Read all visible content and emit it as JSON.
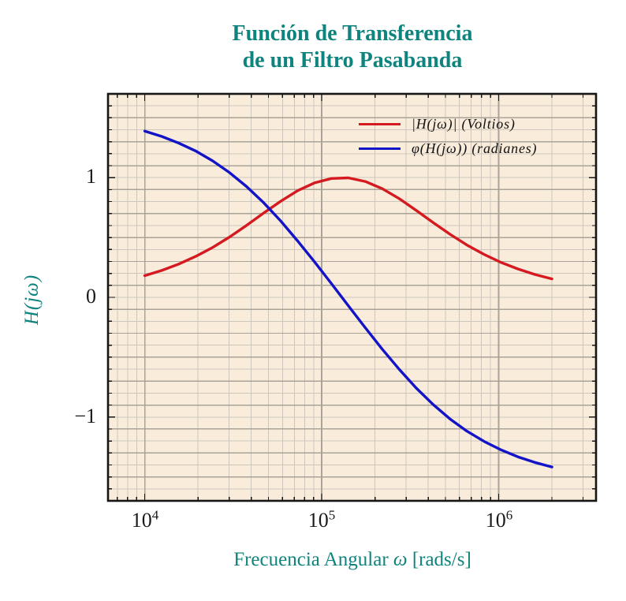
{
  "title": {
    "line1": "Función de Transferencia",
    "line2": "de un Filtro Pasabanda"
  },
  "axes": {
    "ylabel": "H(jω)",
    "xlabel_text": "Frecuencia Angular",
    "xlabel_symbol": "ω",
    "xlabel_units": "[rads/s]",
    "x_tick_labels": [
      {
        "base": "10",
        "exp": "4"
      },
      {
        "base": "10",
        "exp": "5"
      },
      {
        "base": "10",
        "exp": "6"
      }
    ],
    "y_tick_labels": [
      "1",
      "0",
      "−1"
    ]
  },
  "legend": {
    "items": [
      {
        "label": "|H(jω)| (Voltios)",
        "color": "#d51920"
      },
      {
        "label": "φ(H(jω)) (radianes)",
        "color": "#1313c8"
      }
    ]
  },
  "colors": {
    "teal_accent": "#0f837d",
    "plot_background": "#f9ecdb",
    "figure_background": "#ffffff",
    "grid_minor": "#cdc6bc",
    "grid_major": "#a9a399",
    "spine": "#151515",
    "magnitude_red": "#d51920",
    "phase_blue": "#1313c8"
  },
  "chart_data": {
    "type": "line",
    "title": "Función de Transferencia de un Filtro Pasabanda",
    "xlabel": "Frecuencia Angular ω [rads/s]",
    "ylabel": "H(jω)",
    "x_scale": "log",
    "xlim": [
      6200,
      3550000
    ],
    "ylim": [
      -1.7,
      1.7
    ],
    "x_ticks": [
      10000,
      100000,
      1000000
    ],
    "y_ticks": [
      -1,
      0,
      1
    ],
    "grid": "major+minor",
    "y_minor_step": 0.1,
    "legend_position": "top-right-inside",
    "x": [
      10000,
      12475,
      15560,
      19409,
      24210,
      30172,
      37610,
      46890,
      58480,
      72896,
      90906,
      113370,
      141360,
      176260,
      219830,
      274030,
      341670,
      426100,
      531250,
      662270,
      826040,
      1029900,
      1284300,
      1601600,
      2000000
    ],
    "series": [
      {
        "name": "|H(jω)| (Voltios)",
        "color": "#d51920",
        "values": [
          0.181,
          0.225,
          0.278,
          0.342,
          0.417,
          0.504,
          0.601,
          0.703,
          0.802,
          0.89,
          0.956,
          0.993,
          0.998,
          0.968,
          0.908,
          0.825,
          0.727,
          0.625,
          0.527,
          0.437,
          0.359,
          0.292,
          0.237,
          0.191,
          0.154
        ]
      },
      {
        "name": "φ(H(jω)) (radianes)",
        "color": "#1313c8",
        "values": [
          1.389,
          1.344,
          1.289,
          1.223,
          1.14,
          1.042,
          0.926,
          0.792,
          0.64,
          0.474,
          0.298,
          0.115,
          -0.07,
          -0.254,
          -0.433,
          -0.601,
          -0.757,
          -0.895,
          -1.016,
          -1.118,
          -1.203,
          -1.274,
          -1.332,
          -1.379,
          -1.417
        ]
      }
    ]
  }
}
